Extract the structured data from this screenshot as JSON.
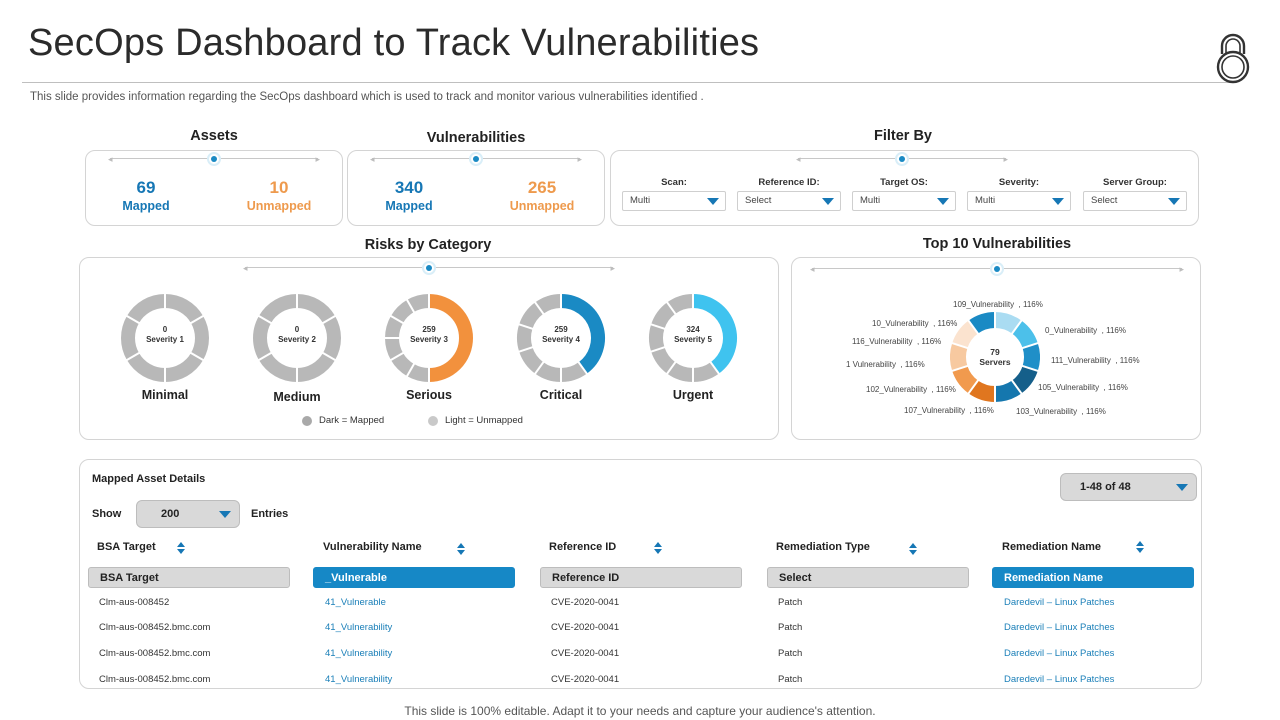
{
  "header": {
    "title": "SecOps Dashboard to Track Vulnerabilities",
    "subtitle": "This slide provides information regarding the SecOps dashboard which is used to track and monitor various vulnerabilities identified ."
  },
  "assets": {
    "label": "Assets",
    "mapped": {
      "value": "69",
      "label": "Mapped"
    },
    "unmapped": {
      "value": "10",
      "label": "Unmapped"
    }
  },
  "vulnerabilities": {
    "label": "Vulnerabilities",
    "mapped": {
      "value": "340",
      "label": "Mapped"
    },
    "unmapped": {
      "value": "265",
      "label": "Unmapped"
    }
  },
  "filter": {
    "label": "Filter By",
    "fields": [
      {
        "label": "Scan:",
        "value": "Multi"
      },
      {
        "label": "Reference ID:",
        "value": "Select"
      },
      {
        "label": "Target OS:",
        "value": "Multi"
      },
      {
        "label": "Severity:",
        "value": "Multi"
      },
      {
        "label": "Server Group:",
        "value": "Select"
      }
    ]
  },
  "risks": {
    "label": "Risks by Category",
    "donuts": [
      {
        "count": "0",
        "severity": "Severity 1",
        "caption": "Minimal",
        "mapped_fraction": 0,
        "color": "#1a8ac4"
      },
      {
        "count": "0",
        "severity": "Severity 2",
        "caption": "Medium",
        "mapped_fraction": 0,
        "color": "#1a8ac4"
      },
      {
        "count": "259",
        "severity": "Severity 3",
        "caption": "Serious",
        "mapped_fraction": 0.5,
        "color": "#f2913d"
      },
      {
        "count": "259",
        "severity": "Severity 4",
        "caption": "Critical",
        "mapped_fraction": 0.4,
        "color": "#1a8ac4"
      },
      {
        "count": "324",
        "severity": "Severity 5",
        "caption": "Urgent",
        "mapped_fraction": 0.4,
        "color": "#3fc3ef"
      }
    ],
    "legend": {
      "dark": "Dark = Mapped",
      "light": "Light = Unmapped"
    }
  },
  "top10": {
    "label": "Top 10 Vulnerabilities",
    "center_value": "79",
    "center_label": "Servers",
    "labels": [
      {
        "name": "109_Vulnerability",
        "value": ", 116%"
      },
      {
        "name": "0_Vulnerability",
        "value": ", 116%"
      },
      {
        "name": "111_Vulnerability",
        "value": ", 116%"
      },
      {
        "name": "105_Vulnerability",
        "value": ", 116%"
      },
      {
        "name": "103_Vulnerability",
        "value": ", 116%"
      },
      {
        "name": "107_Vulnerability",
        "value": ", 116%"
      },
      {
        "name": "102_Vulnerability",
        "value": ", 116%"
      },
      {
        "name": "1 Vulnerability",
        "value": ", 116%"
      },
      {
        "name": "116_Vulnerability",
        "value": ", 116%"
      },
      {
        "name": "10_Vulnerability",
        "value": ", 116%"
      }
    ],
    "segment_colors": [
      "#aadcf2",
      "#4cc0ea",
      "#1f8fc8",
      "#155f8a",
      "#1577ae",
      "#e0761f",
      "#f19a4e",
      "#f7c9a0",
      "#fbe3cf",
      "#1a8ac4"
    ]
  },
  "table": {
    "title": "Mapped Asset Details",
    "show_label": "Show",
    "entries_value": "200",
    "entries_label": "Entries",
    "pager": "1-48 of 48",
    "columns": [
      "BSA Target",
      "Vulnerability Name",
      "Reference ID",
      "Remediation Type",
      "Remediation Name"
    ],
    "filters": [
      "BSA Target",
      "_Vulnerable",
      "Reference ID",
      "Select",
      "Remediation Name"
    ],
    "rows": [
      [
        "Clm-aus-008452",
        "41_Vulnerable",
        "CVE-2020-0041",
        "Patch",
        "Daredevil – Linux Patches"
      ],
      [
        "Clm-aus-008452.bmc.com",
        "41_Vulnerability",
        "CVE-2020-0041",
        "Patch",
        "Daredevil – Linux Patches"
      ],
      [
        "Clm-aus-008452.bmc.com",
        "41_Vulnerability",
        "CVE-2020-0041",
        "Patch",
        "Daredevil – Linux Patches"
      ],
      [
        "Clm-aus-008452.bmc.com",
        "41_Vulnerability",
        "CVE-2020-0041",
        "Patch",
        "Daredevil – Linux Patches"
      ]
    ]
  },
  "footer": "This slide is 100% editable. Adapt it to your needs and capture your audience's attention."
}
